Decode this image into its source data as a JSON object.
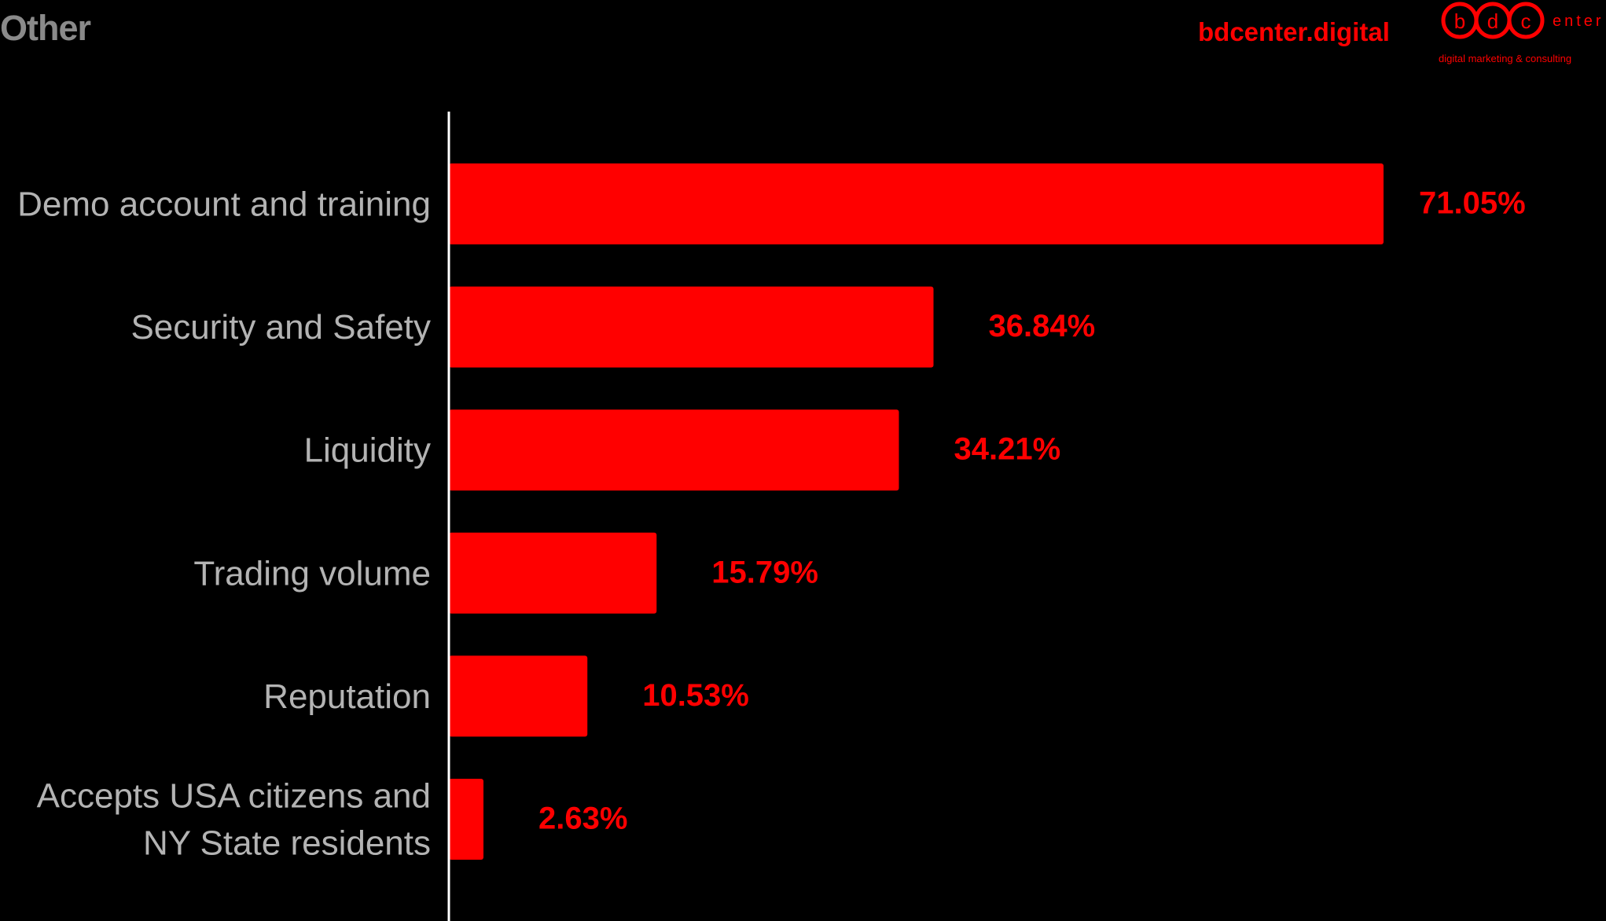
{
  "header": {
    "title": "Other",
    "brand_site": "bdcenter.digital",
    "logo_letters": [
      "b",
      "d",
      "c"
    ],
    "logo_suffix": "enter",
    "logo_tagline": "digital marketing & consulting"
  },
  "colors": {
    "bar": "#ff0000",
    "background": "#000000",
    "category_text": "#b3b3b3",
    "title_text": "#8a8a8a",
    "axis": "#ffffff"
  },
  "chart_data": {
    "type": "bar",
    "orientation": "horizontal",
    "categories": [
      [
        "Demo account and training"
      ],
      [
        "Security and Safety"
      ],
      [
        "Liquidity"
      ],
      [
        "Trading volume"
      ],
      [
        "Reputation"
      ],
      [
        "Accepts USA citizens and",
        "NY State residents"
      ]
    ],
    "values": [
      71.05,
      36.84,
      34.21,
      15.79,
      10.53,
      2.63
    ],
    "value_labels": [
      "71.05%",
      "36.84%",
      "34.21%",
      "15.79%",
      "10.53%",
      "2.63%"
    ],
    "unit": "%",
    "xlim": [
      0,
      100
    ],
    "grid": false,
    "legend": "none"
  }
}
